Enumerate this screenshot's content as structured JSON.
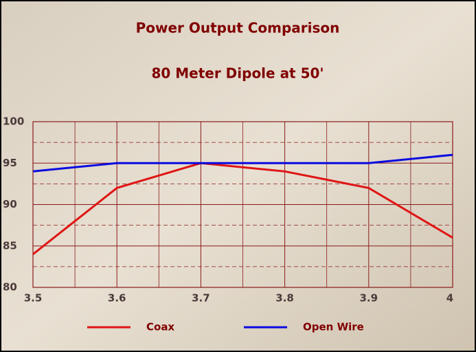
{
  "chart_data": {
    "type": "line",
    "title": "Power Output Comparison",
    "subtitle": "80 Meter Dipole at 50'",
    "x": [
      3.5,
      3.6,
      3.7,
      3.8,
      3.9,
      4
    ],
    "series": [
      {
        "name": "Coax",
        "color": "#e01515",
        "values": [
          84,
          92,
          95,
          94,
          92,
          86
        ]
      },
      {
        "name": "Open Wire",
        "color": "#0a0ae0",
        "values": [
          94,
          95,
          95,
          95,
          95,
          96
        ]
      }
    ],
    "xlim": [
      3.5,
      4
    ],
    "xticks": [
      3.5,
      3.6,
      3.7,
      3.8,
      3.9,
      4
    ],
    "x_minor_ticks": [
      3.55,
      3.65,
      3.75,
      3.85,
      3.95
    ],
    "ylim": [
      80,
      100
    ],
    "yticks": [
      80,
      85,
      90,
      95,
      100
    ],
    "y_minor_ticks": [
      82.5,
      87.5,
      92.5,
      97.5
    ],
    "grid": true,
    "legend": "bottom"
  }
}
